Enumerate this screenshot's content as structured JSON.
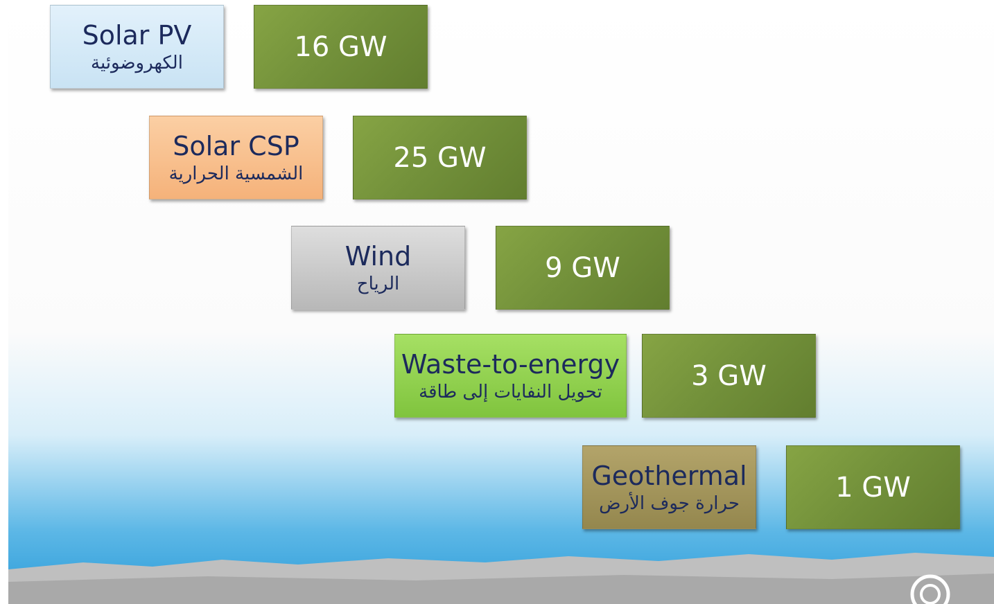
{
  "items": [
    {
      "name": "Solar PV",
      "name_ar": "الكهروضوئية",
      "capacity": "16 GW"
    },
    {
      "name": "Solar CSP",
      "name_ar": "الشمسية الحرارية",
      "capacity": "25 GW"
    },
    {
      "name": "Wind",
      "name_ar": "الرياح",
      "capacity": "9 GW"
    },
    {
      "name": "Waste-to-energy",
      "name_ar": "تحويل النفايات إلى طاقة",
      "capacity": "3 GW"
    },
    {
      "name": "Geothermal",
      "name_ar": "حرارة جوف الأرض",
      "capacity": "1 GW"
    }
  ]
}
